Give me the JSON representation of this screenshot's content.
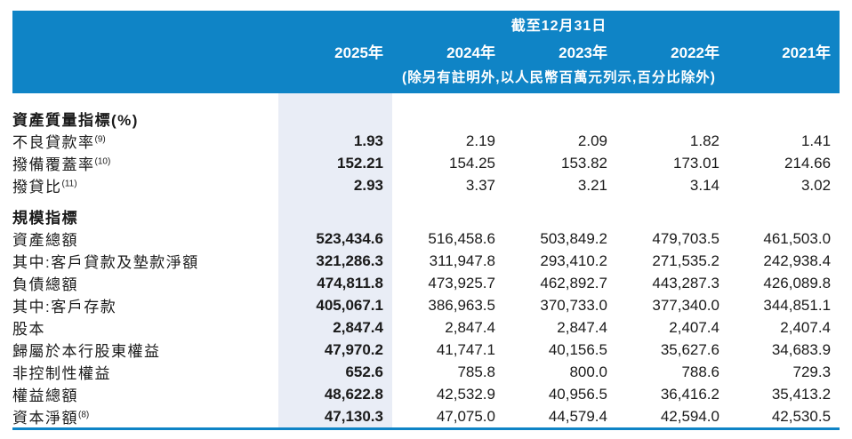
{
  "colors": {
    "banner_blue": "#0f84c6",
    "highlight_column": "#e9edf6",
    "bottom_rule": "#0f84c6",
    "text": "#1a1a1a"
  },
  "header": {
    "period_title": "截至12月31日",
    "years": [
      "2025年",
      "2024年",
      "2023年",
      "2022年",
      "2021年"
    ],
    "unit_note": "(除另有註明外,以人民幣百萬元列示,百分比除外)"
  },
  "table": {
    "sections": [
      {
        "title": "資產質量指標(%)",
        "rows": [
          {
            "label": "不良貸款率",
            "footnote": "(9)",
            "values": [
              "1.93",
              "2.19",
              "2.09",
              "1.82",
              "1.41"
            ]
          },
          {
            "label": "撥備覆蓋率",
            "footnote": "(10)",
            "values": [
              "152.21",
              "154.25",
              "153.82",
              "173.01",
              "214.66"
            ]
          },
          {
            "label": "撥貸比",
            "footnote": "(11)",
            "values": [
              "2.93",
              "3.37",
              "3.21",
              "3.14",
              "3.02"
            ]
          }
        ]
      },
      {
        "title": "規模指標",
        "rows": [
          {
            "label": "資產總額",
            "values": [
              "523,434.6",
              "516,458.6",
              "503,849.2",
              "479,703.5",
              "461,503.0"
            ]
          },
          {
            "label": "其中:客戶貸款及墊款淨額",
            "values": [
              "321,286.3",
              "311,947.8",
              "293,410.2",
              "271,535.2",
              "242,938.4"
            ]
          },
          {
            "label": "負債總額",
            "values": [
              "474,811.8",
              "473,925.7",
              "462,892.7",
              "443,287.3",
              "426,089.8"
            ]
          },
          {
            "label": "其中:客戶存款",
            "values": [
              "405,067.1",
              "386,963.5",
              "370,733.0",
              "377,340.0",
              "344,851.1"
            ]
          },
          {
            "label": "股本",
            "values": [
              "2,847.4",
              "2,847.4",
              "2,847.4",
              "2,407.4",
              "2,407.4"
            ]
          },
          {
            "label": "歸屬於本行股東權益",
            "values": [
              "47,970.2",
              "41,747.1",
              "40,156.5",
              "35,627.6",
              "34,683.9"
            ]
          },
          {
            "label": "非控制性權益",
            "values": [
              "652.6",
              "785.8",
              "800.0",
              "788.6",
              "729.3"
            ]
          },
          {
            "label": "權益總額",
            "values": [
              "48,622.8",
              "42,532.9",
              "40,956.5",
              "36,416.2",
              "35,413.2"
            ]
          },
          {
            "label": "資本淨額",
            "footnote": "(8)",
            "values": [
              "47,130.3",
              "47,075.0",
              "44,579.4",
              "42,594.0",
              "42,530.5"
            ]
          }
        ]
      }
    ]
  }
}
